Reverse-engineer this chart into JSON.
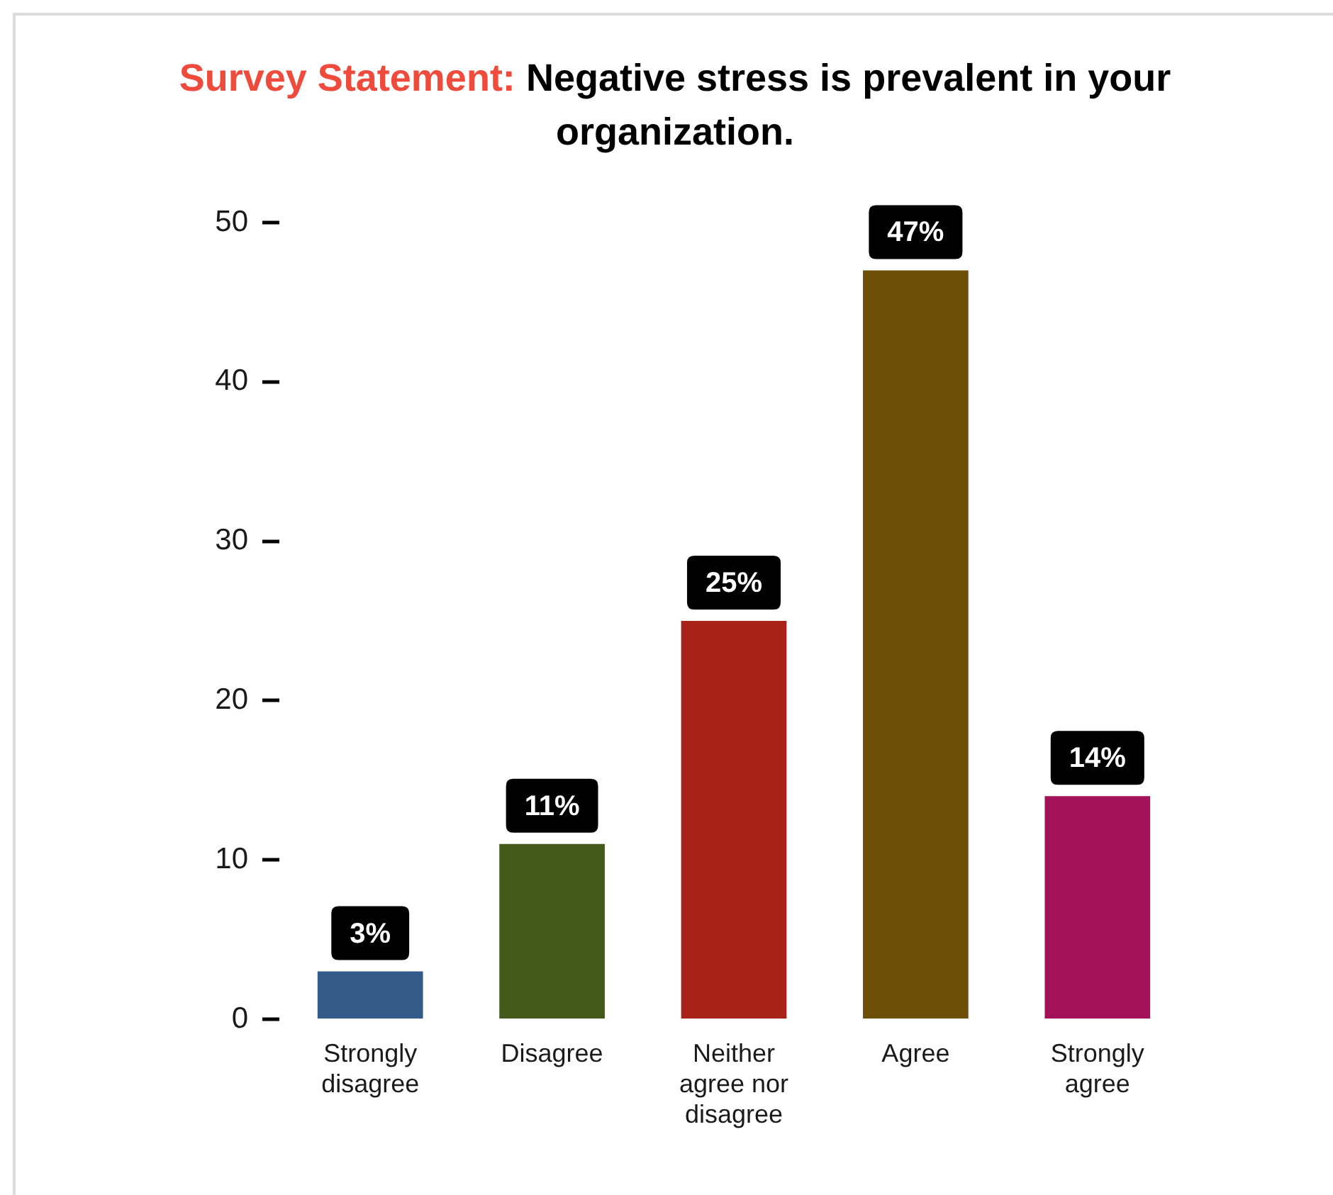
{
  "chart_data": {
    "type": "bar",
    "title": "Survey Statement: Negative stress is prevalent in your organization.",
    "categories": [
      "Strongly disagree",
      "Disagree",
      "Neither agree nor disagree",
      "Agree",
      "Strongly agree"
    ],
    "values": [
      3,
      11,
      25,
      47,
      14
    ],
    "value_labels": [
      "3%",
      "11%",
      "25%",
      "47%",
      "14%"
    ],
    "colors": [
      "#335a89",
      "#445a1a",
      "#a82219",
      "#6e4f08",
      "#a31258"
    ],
    "ylim": [
      0,
      50
    ],
    "yticks": [
      0,
      10,
      20,
      30,
      40,
      50
    ],
    "grid": false,
    "legend": false
  }
}
